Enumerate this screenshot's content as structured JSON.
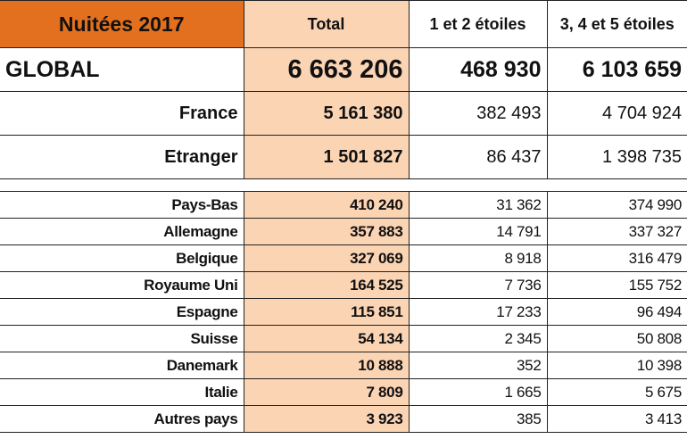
{
  "header": {
    "title": "Nuitées 2017",
    "columns": [
      "Total",
      "1 et 2 étoiles",
      "3, 4 et 5 étoiles"
    ]
  },
  "global": {
    "label": "GLOBAL",
    "total": "6 663 206",
    "stars_1_2": "468 930",
    "stars_3_5": "6 103 659"
  },
  "summary": [
    {
      "label": "France",
      "total": "5 161 380",
      "stars_1_2": "382 493",
      "stars_3_5": "4 704 924"
    },
    {
      "label": "Etranger",
      "total": "1 501 827",
      "stars_1_2": "86 437",
      "stars_3_5": "1 398 735"
    }
  ],
  "countries": [
    {
      "label": "Pays-Bas",
      "total": "410 240",
      "stars_1_2": "31 362",
      "stars_3_5": "374 990"
    },
    {
      "label": "Allemagne",
      "total": "357 883",
      "stars_1_2": "14 791",
      "stars_3_5": "337 327"
    },
    {
      "label": "Belgique",
      "total": "327 069",
      "stars_1_2": "8 918",
      "stars_3_5": "316 479"
    },
    {
      "label": "Royaume Uni",
      "total": "164 525",
      "stars_1_2": "7 736",
      "stars_3_5": "155 752"
    },
    {
      "label": "Espagne",
      "total": "115 851",
      "stars_1_2": "17 233",
      "stars_3_5": "96 494"
    },
    {
      "label": "Suisse",
      "total": "54 134",
      "stars_1_2": "2 345",
      "stars_3_5": "50 808"
    },
    {
      "label": "Danemark",
      "total": "10 888",
      "stars_1_2": "352",
      "stars_3_5": "10 398"
    },
    {
      "label": "Italie",
      "total": "7 809",
      "stars_1_2": "1 665",
      "stars_3_5": "5 675"
    },
    {
      "label": "Autres pays",
      "total": "3 923",
      "stars_1_2": "385",
      "stars_3_5": "3 413"
    }
  ]
}
